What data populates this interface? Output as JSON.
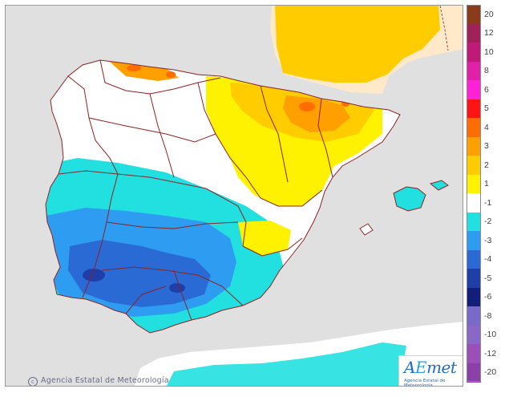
{
  "map": {
    "copyright_symbol": "c",
    "copyright": "Agencia Estatal de Meteorología",
    "logo_text_a": "A",
    "logo_text_e": "E",
    "logo_text_met": "met",
    "logo_subtitle": "Agencia Estatal de Meteorología",
    "colors": {
      "sea": "#e0e0e0",
      "france": "#ffe9c9",
      "neutral": "#ffffff",
      "border": "#8b2323"
    }
  },
  "legend": {
    "classes": [
      {
        "label": "20",
        "color": "#8c3a1c"
      },
      {
        "label": "12",
        "color": "#a2205a"
      },
      {
        "label": "10",
        "color": "#c01a78"
      },
      {
        "label": "8",
        "color": "#e020a8"
      },
      {
        "label": "6",
        "color": "#ff22d6"
      },
      {
        "label": "5",
        "color": "#ff1414"
      },
      {
        "label": "4",
        "color": "#ff6c00"
      },
      {
        "label": "3",
        "color": "#ffa000"
      },
      {
        "label": "2",
        "color": "#ffcc00"
      },
      {
        "label": "1",
        "color": "#fff200"
      },
      {
        "label": "-1",
        "color": "#ffffff"
      },
      {
        "label": "-2",
        "color": "#22e0e0"
      },
      {
        "label": "-3",
        "color": "#2e9cf0"
      },
      {
        "label": "-4",
        "color": "#2a6ad4"
      },
      {
        "label": "-5",
        "color": "#1f3ea8"
      },
      {
        "label": "-6",
        "color": "#121e7a"
      },
      {
        "label": "-8",
        "color": "#7a6ac8"
      },
      {
        "label": "-10",
        "color": "#8a68c6"
      },
      {
        "label": "-12",
        "color": "#9a50b8"
      },
      {
        "label": "-20",
        "color": "#8a40a8"
      }
    ]
  }
}
